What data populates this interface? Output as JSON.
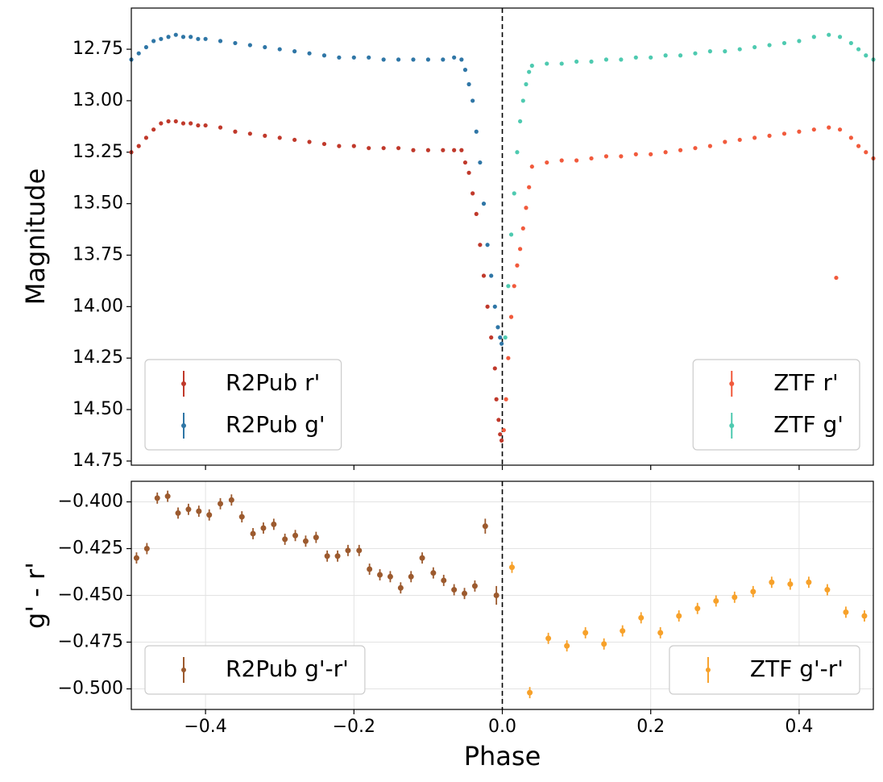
{
  "chart_data": [
    {
      "type": "scatter",
      "ylabel": "Magnitude",
      "xlim": [
        -0.5,
        0.5
      ],
      "ylim": [
        14.77,
        12.55
      ],
      "xticks": [
        -0.4,
        -0.2,
        0,
        0.2,
        0.4
      ],
      "yticks": [
        12.75,
        {
          "value": 13,
          "label": "13.00"
        },
        13.25,
        {
          "value": 13.5,
          "label": "13.50"
        },
        13.75,
        {
          "value": 14,
          "label": "14.00"
        },
        14.25,
        {
          "value": 14.5,
          "label": "14.50"
        },
        14.75
      ],
      "grid": false,
      "vline": 0,
      "series": [
        {
          "name": "R2Pub r'",
          "color": "#c0392b",
          "legend": "lower left",
          "x": [
            -0.5,
            -0.49,
            -0.48,
            -0.47,
            -0.46,
            -0.45,
            -0.44,
            -0.43,
            -0.42,
            -0.41,
            -0.4,
            -0.38,
            -0.36,
            -0.34,
            -0.32,
            -0.3,
            -0.28,
            -0.26,
            -0.24,
            -0.22,
            -0.2,
            -0.18,
            -0.16,
            -0.14,
            -0.12,
            -0.1,
            -0.08,
            -0.065,
            -0.055,
            -0.05,
            -0.045,
            -0.04,
            -0.035,
            -0.03,
            -0.025,
            -0.02,
            -0.015,
            -0.01,
            -0.008,
            -0.005,
            -0.003,
            -0.001
          ],
          "values": [
            13.25,
            13.22,
            13.18,
            13.14,
            13.11,
            13.1,
            13.1,
            13.11,
            13.11,
            13.12,
            13.12,
            13.13,
            13.15,
            13.16,
            13.17,
            13.18,
            13.19,
            13.2,
            13.21,
            13.22,
            13.22,
            13.23,
            13.23,
            13.23,
            13.24,
            13.24,
            13.24,
            13.24,
            13.24,
            13.3,
            13.35,
            13.45,
            13.55,
            13.7,
            13.85,
            14.0,
            14.15,
            14.3,
            14.45,
            14.55,
            14.62,
            14.65
          ]
        },
        {
          "name": "R2Pub g'",
          "color": "#2f76a6",
          "legend": "lower left",
          "x": [
            -0.5,
            -0.49,
            -0.48,
            -0.47,
            -0.46,
            -0.45,
            -0.44,
            -0.43,
            -0.42,
            -0.41,
            -0.4,
            -0.38,
            -0.36,
            -0.34,
            -0.32,
            -0.3,
            -0.28,
            -0.26,
            -0.24,
            -0.22,
            -0.2,
            -0.18,
            -0.16,
            -0.14,
            -0.12,
            -0.1,
            -0.08,
            -0.065,
            -0.055,
            -0.05,
            -0.045,
            -0.04,
            -0.035,
            -0.03,
            -0.025,
            -0.02,
            -0.015,
            -0.01,
            -0.006,
            -0.003,
            -0.001
          ],
          "values": [
            12.8,
            12.77,
            12.74,
            12.71,
            12.7,
            12.69,
            12.68,
            12.69,
            12.69,
            12.7,
            12.7,
            12.71,
            12.72,
            12.73,
            12.74,
            12.75,
            12.76,
            12.77,
            12.78,
            12.79,
            12.79,
            12.79,
            12.8,
            12.8,
            12.8,
            12.8,
            12.8,
            12.79,
            12.8,
            12.85,
            12.92,
            13.0,
            13.15,
            13.3,
            13.5,
            13.7,
            13.85,
            14.0,
            14.1,
            14.15,
            14.18
          ]
        },
        {
          "name": "ZTF r'",
          "color": "#f15a3c",
          "legend": "lower right",
          "x": [
            0.002,
            0.005,
            0.008,
            0.012,
            0.016,
            0.02,
            0.024,
            0.028,
            0.032,
            0.036,
            0.04,
            0.06,
            0.08,
            0.1,
            0.12,
            0.14,
            0.16,
            0.18,
            0.2,
            0.22,
            0.24,
            0.26,
            0.28,
            0.3,
            0.32,
            0.34,
            0.36,
            0.38,
            0.4,
            0.42,
            0.44,
            0.455,
            0.47,
            0.48,
            0.49,
            0.5,
            0.45
          ],
          "values": [
            14.6,
            14.45,
            14.25,
            14.05,
            13.9,
            13.8,
            13.72,
            13.62,
            13.52,
            13.42,
            13.32,
            13.3,
            13.29,
            13.29,
            13.28,
            13.27,
            13.27,
            13.26,
            13.26,
            13.25,
            13.24,
            13.23,
            13.22,
            13.2,
            13.19,
            13.18,
            13.17,
            13.16,
            13.15,
            13.14,
            13.13,
            13.14,
            13.18,
            13.22,
            13.25,
            13.28,
            13.86
          ]
        },
        {
          "name": "ZTF g'",
          "color": "#4ecab0",
          "legend": "lower right",
          "x": [
            0.004,
            0.008,
            0.012,
            0.016,
            0.02,
            0.024,
            0.028,
            0.032,
            0.036,
            0.04,
            0.06,
            0.08,
            0.1,
            0.12,
            0.14,
            0.16,
            0.18,
            0.2,
            0.22,
            0.24,
            0.26,
            0.28,
            0.3,
            0.32,
            0.34,
            0.36,
            0.38,
            0.4,
            0.42,
            0.44,
            0.455,
            0.47,
            0.48,
            0.49,
            0.5
          ],
          "values": [
            14.15,
            13.9,
            13.65,
            13.45,
            13.25,
            13.1,
            13.0,
            12.92,
            12.86,
            12.83,
            12.82,
            12.82,
            12.81,
            12.81,
            12.8,
            12.8,
            12.79,
            12.79,
            12.78,
            12.78,
            12.77,
            12.76,
            12.76,
            12.75,
            12.74,
            12.73,
            12.72,
            12.71,
            12.69,
            12.68,
            12.69,
            12.72,
            12.75,
            12.78,
            12.8
          ]
        }
      ]
    },
    {
      "type": "scatter",
      "ylabel": "g' - r'",
      "xlabel": "Phase",
      "xlim": [
        -0.5,
        0.5
      ],
      "ylim": [
        -0.511,
        -0.389
      ],
      "xticks": [
        {
          "value": -0.4,
          "label": "−0.4"
        },
        {
          "value": -0.2,
          "label": "−0.2"
        },
        {
          "value": 0,
          "label": "0.0"
        },
        0.2,
        0.4
      ],
      "yticks": [
        {
          "value": -0.4,
          "label": "−0.400"
        },
        {
          "value": -0.425,
          "label": "−0.425"
        },
        {
          "value": -0.45,
          "label": "−0.450"
        },
        {
          "value": -0.475,
          "label": "−0.475"
        },
        {
          "value": -0.5,
          "label": "−0.500"
        }
      ],
      "grid": true,
      "vline": 0,
      "series": [
        {
          "name": "R2Pub g'-r'",
          "color": "#9c5a2e",
          "legend": "lower left",
          "x": [
            -0.493,
            -0.479,
            -0.465,
            -0.451,
            -0.437,
            -0.423,
            -0.409,
            -0.395,
            -0.38,
            -0.365,
            -0.351,
            -0.336,
            -0.322,
            -0.308,
            -0.293,
            -0.279,
            -0.265,
            -0.251,
            -0.236,
            -0.222,
            -0.208,
            -0.193,
            -0.179,
            -0.165,
            -0.151,
            -0.137,
            -0.123,
            -0.108,
            -0.093,
            -0.079,
            -0.065,
            -0.051,
            -0.037,
            -0.023,
            -0.008
          ],
          "values": [
            -0.43,
            -0.425,
            -0.398,
            -0.397,
            -0.406,
            -0.404,
            -0.405,
            -0.407,
            -0.401,
            -0.399,
            -0.408,
            -0.417,
            -0.414,
            -0.412,
            -0.42,
            -0.418,
            -0.421,
            -0.419,
            -0.429,
            -0.429,
            -0.426,
            -0.426,
            -0.436,
            -0.439,
            -0.44,
            -0.446,
            -0.44,
            -0.43,
            -0.438,
            -0.442,
            -0.447,
            -0.449,
            -0.445,
            -0.413,
            -0.45
          ],
          "errors": [
            0.003,
            0.003,
            0.003,
            0.003,
            0.003,
            0.003,
            0.003,
            0.003,
            0.003,
            0.003,
            0.003,
            0.003,
            0.003,
            0.003,
            0.003,
            0.003,
            0.003,
            0.003,
            0.003,
            0.003,
            0.003,
            0.003,
            0.003,
            0.003,
            0.003,
            0.003,
            0.003,
            0.003,
            0.003,
            0.003,
            0.003,
            0.003,
            0.003,
            0.004,
            0.005
          ]
        },
        {
          "name": "ZTF g'-r'",
          "color": "#f7a12a",
          "legend": "lower right",
          "x": [
            0.013,
            0.037,
            0.062,
            0.087,
            0.112,
            0.137,
            0.162,
            0.187,
            0.213,
            0.238,
            0.263,
            0.288,
            0.313,
            0.338,
            0.363,
            0.388,
            0.413,
            0.438,
            0.463,
            0.488
          ],
          "values": [
            -0.435,
            -0.502,
            -0.473,
            -0.477,
            -0.47,
            -0.476,
            -0.469,
            -0.462,
            -0.47,
            -0.461,
            -0.457,
            -0.453,
            -0.451,
            -0.448,
            -0.443,
            -0.444,
            -0.443,
            -0.447,
            -0.459,
            -0.461
          ],
          "errors": [
            0.003,
            0.003,
            0.003,
            0.003,
            0.003,
            0.003,
            0.003,
            0.003,
            0.003,
            0.003,
            0.003,
            0.003,
            0.003,
            0.003,
            0.003,
            0.003,
            0.003,
            0.003,
            0.003,
            0.003
          ]
        }
      ]
    }
  ]
}
